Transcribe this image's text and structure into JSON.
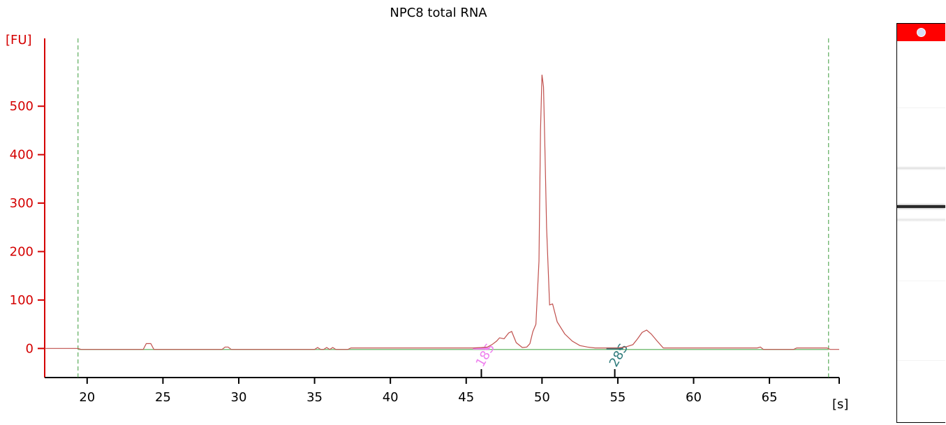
{
  "chart_data": {
    "type": "line",
    "title": "NPC8 total RNA",
    "ylabel": "[FU]",
    "xlabel": "[s]",
    "xlim": [
      17.2,
      69.6
    ],
    "ylim": [
      -60,
      640
    ],
    "xticks": [
      20,
      25,
      30,
      35,
      40,
      45,
      50,
      55,
      60,
      65
    ],
    "yticks": [
      0,
      100,
      200,
      300,
      400,
      500
    ],
    "grid": false,
    "markers": [
      {
        "label": "18S",
        "x": 46.0,
        "color": "#ee82ee"
      },
      {
        "label": "28S",
        "x": 54.8,
        "color": "#2e7b7b"
      }
    ],
    "dashed_lines": [
      19.4,
      68.9
    ],
    "baseline": {
      "y": -2,
      "x_range": [
        19.4,
        68.9
      ],
      "color": "#7cc07c"
    },
    "series": [
      {
        "color": "#c0504d",
        "x": [
          17.2,
          19.4,
          19.6,
          23.7,
          23.9,
          24.0,
          24.2,
          24.4,
          28.9,
          29.1,
          29.3,
          29.5,
          35.0,
          35.2,
          35.4,
          35.6,
          35.8,
          36.0,
          36.2,
          36.4,
          37.2,
          37.4,
          37.8,
          38.0,
          45.0,
          45.5,
          46.0,
          46.4,
          46.7,
          47.0,
          47.2,
          47.5,
          47.8,
          48.0,
          48.3,
          48.7,
          49.0,
          49.2,
          49.4,
          49.6,
          49.8,
          49.9,
          50.0,
          50.1,
          50.2,
          50.3,
          50.5,
          50.7,
          51.0,
          51.5,
          52.0,
          52.5,
          53.0,
          53.5,
          54.0,
          55.0,
          55.5,
          56.0,
          56.3,
          56.6,
          56.9,
          57.2,
          57.6,
          58.0,
          64.2,
          64.4,
          64.6,
          66.6,
          66.8,
          68.8,
          69.0,
          69.6
        ],
        "y": [
          0,
          0,
          -2,
          -2,
          10,
          10,
          10,
          -2,
          -2,
          3,
          3,
          -2,
          -2,
          2,
          -2,
          -2,
          2,
          -2,
          2,
          -2,
          -2,
          1,
          1,
          1,
          1,
          1,
          2,
          3,
          8,
          15,
          22,
          20,
          32,
          35,
          12,
          2,
          3,
          10,
          35,
          50,
          180,
          450,
          565,
          540,
          400,
          250,
          90,
          92,
          55,
          30,
          15,
          6,
          3,
          1,
          1,
          1,
          3,
          8,
          20,
          33,
          38,
          30,
          15,
          1,
          1,
          3,
          -2,
          -2,
          1,
          1,
          -2,
          -2
        ]
      }
    ]
  },
  "gel": {
    "band_colors": {
      "main": "#2a2a2a",
      "faint": "#c8c8c8",
      "header": "#ff0000"
    }
  }
}
